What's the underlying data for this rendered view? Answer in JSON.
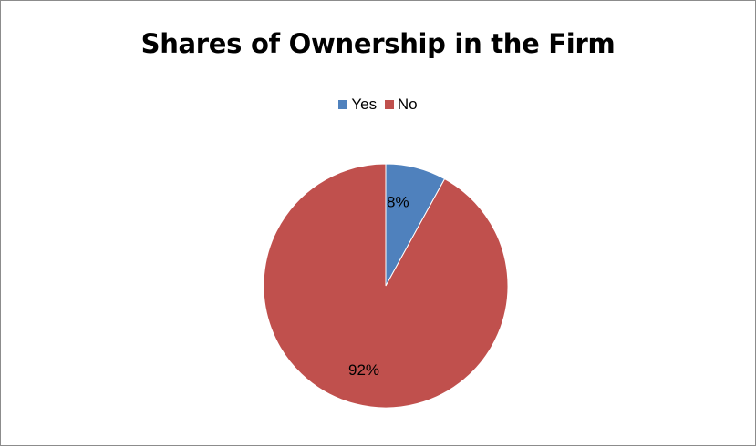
{
  "chart_data": {
    "type": "pie",
    "title": "Shares of Ownership in the Firm",
    "categories": [
      "Yes",
      "No"
    ],
    "values": [
      8,
      92
    ],
    "data_labels": [
      "8%",
      "92%"
    ],
    "colors": [
      "#4F81BD",
      "#C0504D"
    ],
    "legend_position": "top"
  }
}
